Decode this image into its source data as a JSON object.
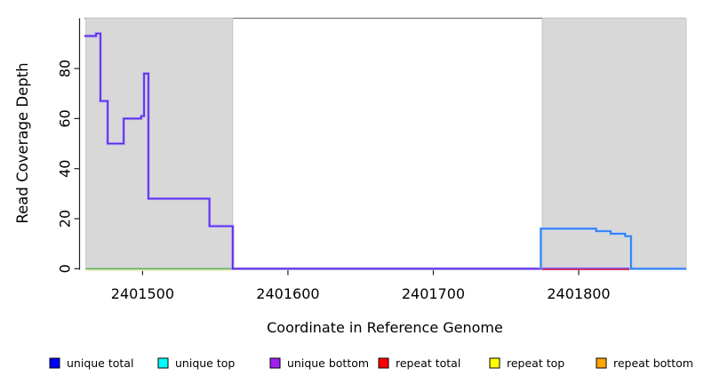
{
  "chart_data": {
    "type": "line",
    "subtype": "step-coverage",
    "title": "",
    "xlabel": "Coordinate in Reference Genome",
    "ylabel": "Read Coverage Depth",
    "x_range": [
      2401460,
      2401874
    ],
    "ylim": [
      0,
      100
    ],
    "grid": "off",
    "legend_position": "bottom",
    "x_ticks": [
      {
        "value": 2401500,
        "label": "2401500"
      },
      {
        "value": 2401600,
        "label": "2401600"
      },
      {
        "value": 2401700,
        "label": "2401700"
      },
      {
        "value": 2401800,
        "label": "2401800"
      }
    ],
    "y_ticks": [
      {
        "value": 0,
        "label": "0"
      },
      {
        "value": 20,
        "label": "20"
      },
      {
        "value": 40,
        "label": "40"
      },
      {
        "value": 60,
        "label": "60"
      },
      {
        "value": 80,
        "label": "80"
      }
    ],
    "regions": [
      {
        "name": "left-gray-region",
        "x1": 2401461,
        "x2": 2401562,
        "color": "#d8d8d8"
      },
      {
        "name": "right-gray-region",
        "x1": 2401775,
        "x2": 2401874,
        "color": "#d8d8d8"
      }
    ],
    "series": [
      {
        "name": "left-region-coverage",
        "core_color": "#5c2be4",
        "halo_color": "#b7a6f7",
        "steps": [
          [
            2401460,
            93
          ],
          [
            2401468,
            94
          ],
          [
            2401471,
            67
          ],
          [
            2401476,
            50
          ],
          [
            2401487,
            60
          ],
          [
            2401499,
            61
          ],
          [
            2401501,
            78
          ],
          [
            2401504,
            28
          ],
          [
            2401546,
            17
          ],
          [
            2401562,
            0
          ],
          [
            2401874,
            0
          ]
        ]
      },
      {
        "name": "right-region-coverage",
        "core_color": "#2878f0",
        "halo_color": "#a9cdfa",
        "steps": [
          [
            2401774,
            0
          ],
          [
            2401774,
            16
          ],
          [
            2401812,
            15
          ],
          [
            2401822,
            14
          ],
          [
            2401832,
            13
          ],
          [
            2401836,
            0
          ],
          [
            2401874,
            0
          ]
        ]
      }
    ],
    "baseline_segments": [
      {
        "name": "yellow-baseline",
        "x1": 2401461,
        "x2": 2401562,
        "color": "#f3efad",
        "dy": 1.7
      },
      {
        "name": "green-baseline",
        "x1": 2401461,
        "x2": 2401562,
        "color": "#5fb25f",
        "dy": 0.0
      },
      {
        "name": "red-baseline",
        "x1": 2401775,
        "x2": 2401836,
        "color": "#e23b50",
        "dy": 0.9
      }
    ],
    "legend": [
      {
        "label": "unique total",
        "color": "#0000ff"
      },
      {
        "label": "unique top",
        "color": "#00ffff"
      },
      {
        "label": "unique bottom",
        "color": "#a020f0"
      },
      {
        "label": "repeat total",
        "color": "#ff0000"
      },
      {
        "label": "repeat top",
        "color": "#ffff00"
      },
      {
        "label": "repeat bottom",
        "color": "#ffa500"
      }
    ]
  }
}
